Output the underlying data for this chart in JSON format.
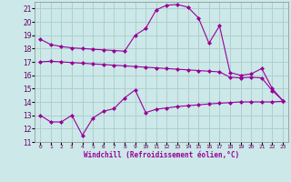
{
  "xlabel": "Windchill (Refroidissement éolien,°C)",
  "x": [
    0,
    1,
    2,
    3,
    4,
    5,
    6,
    7,
    8,
    9,
    10,
    11,
    12,
    13,
    14,
    15,
    16,
    17,
    18,
    19,
    20,
    21,
    22,
    23
  ],
  "line1": [
    18.7,
    18.3,
    18.15,
    18.05,
    18.0,
    17.95,
    17.9,
    17.85,
    17.8,
    19.0,
    19.5,
    20.9,
    21.25,
    21.3,
    21.1,
    20.3,
    18.4,
    19.7,
    16.2,
    16.0,
    16.1,
    16.5,
    15.0,
    14.1
  ],
  "line2": [
    17.0,
    17.05,
    17.0,
    16.95,
    16.9,
    16.85,
    16.8,
    16.75,
    16.7,
    16.65,
    16.6,
    16.55,
    16.5,
    16.45,
    16.4,
    16.35,
    16.3,
    16.25,
    15.85,
    15.8,
    15.85,
    15.8,
    14.85,
    14.1
  ],
  "line3": [
    13.0,
    12.5,
    12.5,
    13.0,
    11.5,
    12.8,
    13.3,
    13.5,
    14.3,
    14.9,
    13.2,
    13.45,
    13.55,
    13.65,
    13.72,
    13.78,
    13.85,
    13.9,
    13.95,
    14.0,
    14.0,
    14.0,
    14.0,
    14.05
  ],
  "line_color": "#990099",
  "bg_color": "#cce8e8",
  "grid_color": "#aacccc",
  "ylim": [
    11,
    21.5
  ],
  "yticks": [
    11,
    12,
    13,
    14,
    15,
    16,
    17,
    18,
    19,
    20,
    21
  ],
  "marker": "D",
  "markersize": 2,
  "linewidth": 0.8
}
